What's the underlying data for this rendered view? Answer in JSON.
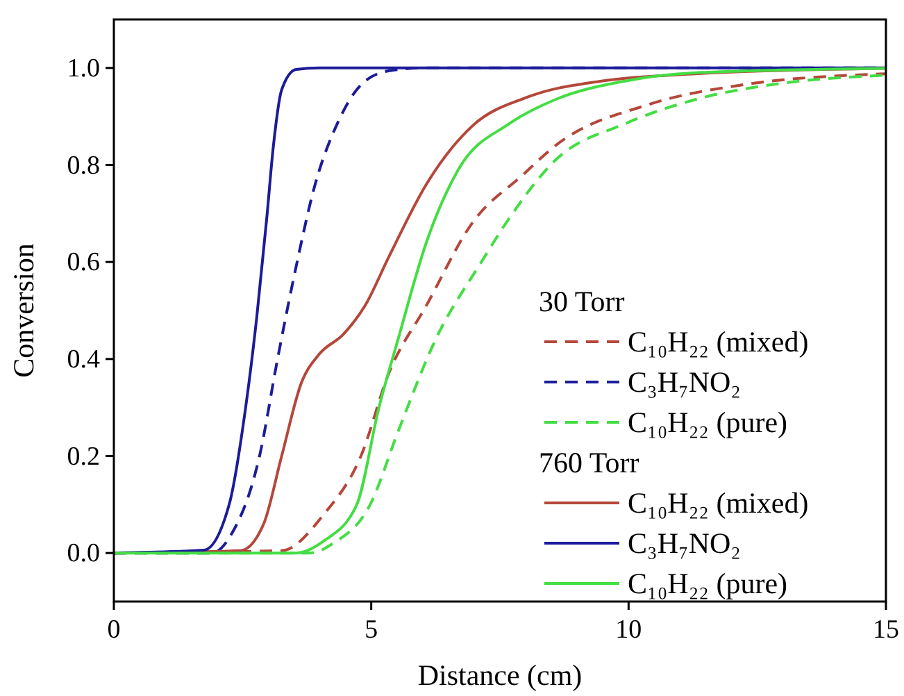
{
  "chart_data": {
    "type": "line",
    "xlabel": "Distance (cm)",
    "ylabel": "Conversion",
    "xlim": [
      0,
      15
    ],
    "ylim": [
      -0.1,
      1.1
    ],
    "xticks": [
      0,
      5,
      10,
      15
    ],
    "yticks": [
      {
        "value": 0,
        "label": "0.0"
      },
      {
        "value": 0.2,
        "label": "0.2"
      },
      {
        "value": 0.4,
        "label": "0.4"
      },
      {
        "value": 0.6,
        "label": "0.6"
      },
      {
        "value": 0.8,
        "label": "0.8"
      },
      {
        "value": 1,
        "label": "1.0"
      }
    ],
    "grid": false,
    "legend": "bottom right",
    "marker": "none",
    "annotations": [
      "30  Torr",
      "760 Torr"
    ],
    "series": [
      {
        "name": "C₁₀H₂₂ (mixed)",
        "color": "#b5473a",
        "line_style": "dashed",
        "x": [
          0,
          3.26,
          4.08,
          4.8,
          5.34,
          6.07,
          6.96,
          7.95,
          8.58,
          10.4,
          12.2,
          15
        ],
        "values": [
          0,
          0.005,
          0.08,
          0.2,
          0.37,
          0.51,
          0.68,
          0.78,
          0.84,
          0.925,
          0.965,
          0.988
        ]
      },
      {
        "name": "C₃H₇NO₂",
        "color": "#1c1c9a",
        "line_style": "dashed",
        "x": [
          0,
          1.9,
          2.29,
          2.83,
          3.18,
          3.54,
          3.91,
          4.34,
          4.8,
          5.34,
          6,
          15
        ],
        "values": [
          0,
          0,
          0.04,
          0.2,
          0.4,
          0.59,
          0.76,
          0.885,
          0.965,
          0.994,
          1,
          1
        ]
      },
      {
        "name": "C₁₀H₂₂ (pure)",
        "color": "#44dd44",
        "line_style": "dashed",
        "x": [
          0,
          3.8,
          4.26,
          4.98,
          5.52,
          6.25,
          7.14,
          7.68,
          8.58,
          9.93,
          11.3,
          13.1,
          15
        ],
        "values": [
          0,
          0,
          0.02,
          0.1,
          0.25,
          0.44,
          0.6,
          0.69,
          0.81,
          0.885,
          0.935,
          0.97,
          0.985
        ]
      },
      {
        "name": "C₁₀H₂₂ (mixed)",
        "color": "#b5473a",
        "line_style": "solid",
        "x": [
          0,
          2.46,
          2.91,
          3.26,
          3.64,
          3.99,
          4.45,
          4.88,
          5.34,
          6.07,
          6.96,
          8.04,
          9.47,
          11.3,
          15
        ],
        "values": [
          0,
          0.005,
          0.06,
          0.2,
          0.35,
          0.41,
          0.45,
          0.51,
          0.61,
          0.76,
          0.88,
          0.94,
          0.973,
          0.988,
          0.999
        ]
      },
      {
        "name": "C₃H₇NO₂",
        "color": "#1c1c9a",
        "line_style": "solid",
        "x": [
          0,
          1.75,
          2.24,
          2.56,
          2.78,
          2.97,
          3.1,
          3.26,
          3.54,
          4,
          15
        ],
        "values": [
          0,
          0.006,
          0.1,
          0.3,
          0.49,
          0.69,
          0.84,
          0.955,
          0.997,
          1,
          1
        ]
      },
      {
        "name": "C₁₀H₂₂ (pure)",
        "color": "#44dd44",
        "line_style": "solid",
        "x": [
          0,
          3.54,
          4.08,
          4.72,
          5.15,
          5.52,
          6.07,
          6.69,
          7.68,
          8.58,
          9.93,
          11.3,
          15
        ],
        "values": [
          0,
          0,
          0.025,
          0.1,
          0.3,
          0.44,
          0.64,
          0.79,
          0.885,
          0.935,
          0.973,
          0.99,
          0.999
        ]
      }
    ]
  }
}
